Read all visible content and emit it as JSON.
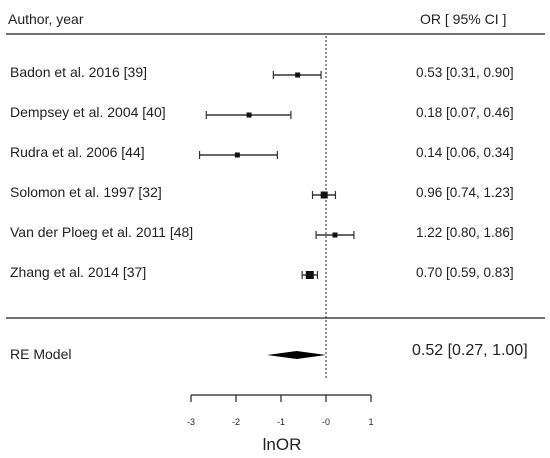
{
  "chart_data": {
    "type": "forest",
    "header_left": "Author, year",
    "header_right": "OR [ 95% CI ]",
    "xlabel": "lnOR",
    "xlim": [
      -3,
      1
    ],
    "xticks": [
      -3,
      -2,
      -1,
      0,
      1
    ],
    "xtick_labels": [
      "-3",
      "-2",
      "-1",
      "-0",
      "1"
    ],
    "reference_line": 0,
    "studies": [
      {
        "label": "Badon et al. 2016  [39]",
        "or_ci": "0.53 [0.31, 0.90]",
        "lnor": -0.63,
        "lo": -1.17,
        "hi": -0.11
      },
      {
        "label": "Dempsey et al. 2004  [40]",
        "or_ci": "0.18 [0.07, 0.46]",
        "lnor": -1.71,
        "lo": -2.66,
        "hi": -0.78
      },
      {
        "label": "Rudra et al. 2006  [44]",
        "or_ci": "0.14 [0.06, 0.34]",
        "lnor": -1.97,
        "lo": -2.81,
        "hi": -1.08
      },
      {
        "label": "Solomon et al. 1997  [32]",
        "or_ci": "0.96 [0.74, 1.23]",
        "lnor": -0.04,
        "lo": -0.3,
        "hi": 0.21
      },
      {
        "label": "Van der Ploeg et al. 2011  [48]",
        "or_ci": "1.22 [0.80, 1.86]",
        "lnor": 0.2,
        "lo": -0.22,
        "hi": 0.62
      },
      {
        "label": "Zhang et al. 2014  [37]",
        "or_ci": "0.70 [0.59, 0.83]",
        "lnor": -0.36,
        "lo": -0.53,
        "hi": -0.19
      }
    ],
    "summary": {
      "label": "RE Model",
      "or_ci": "0.52 [0.27, 1.00]",
      "lnor": -0.65,
      "lo": -1.31,
      "hi": 0.0
    }
  }
}
